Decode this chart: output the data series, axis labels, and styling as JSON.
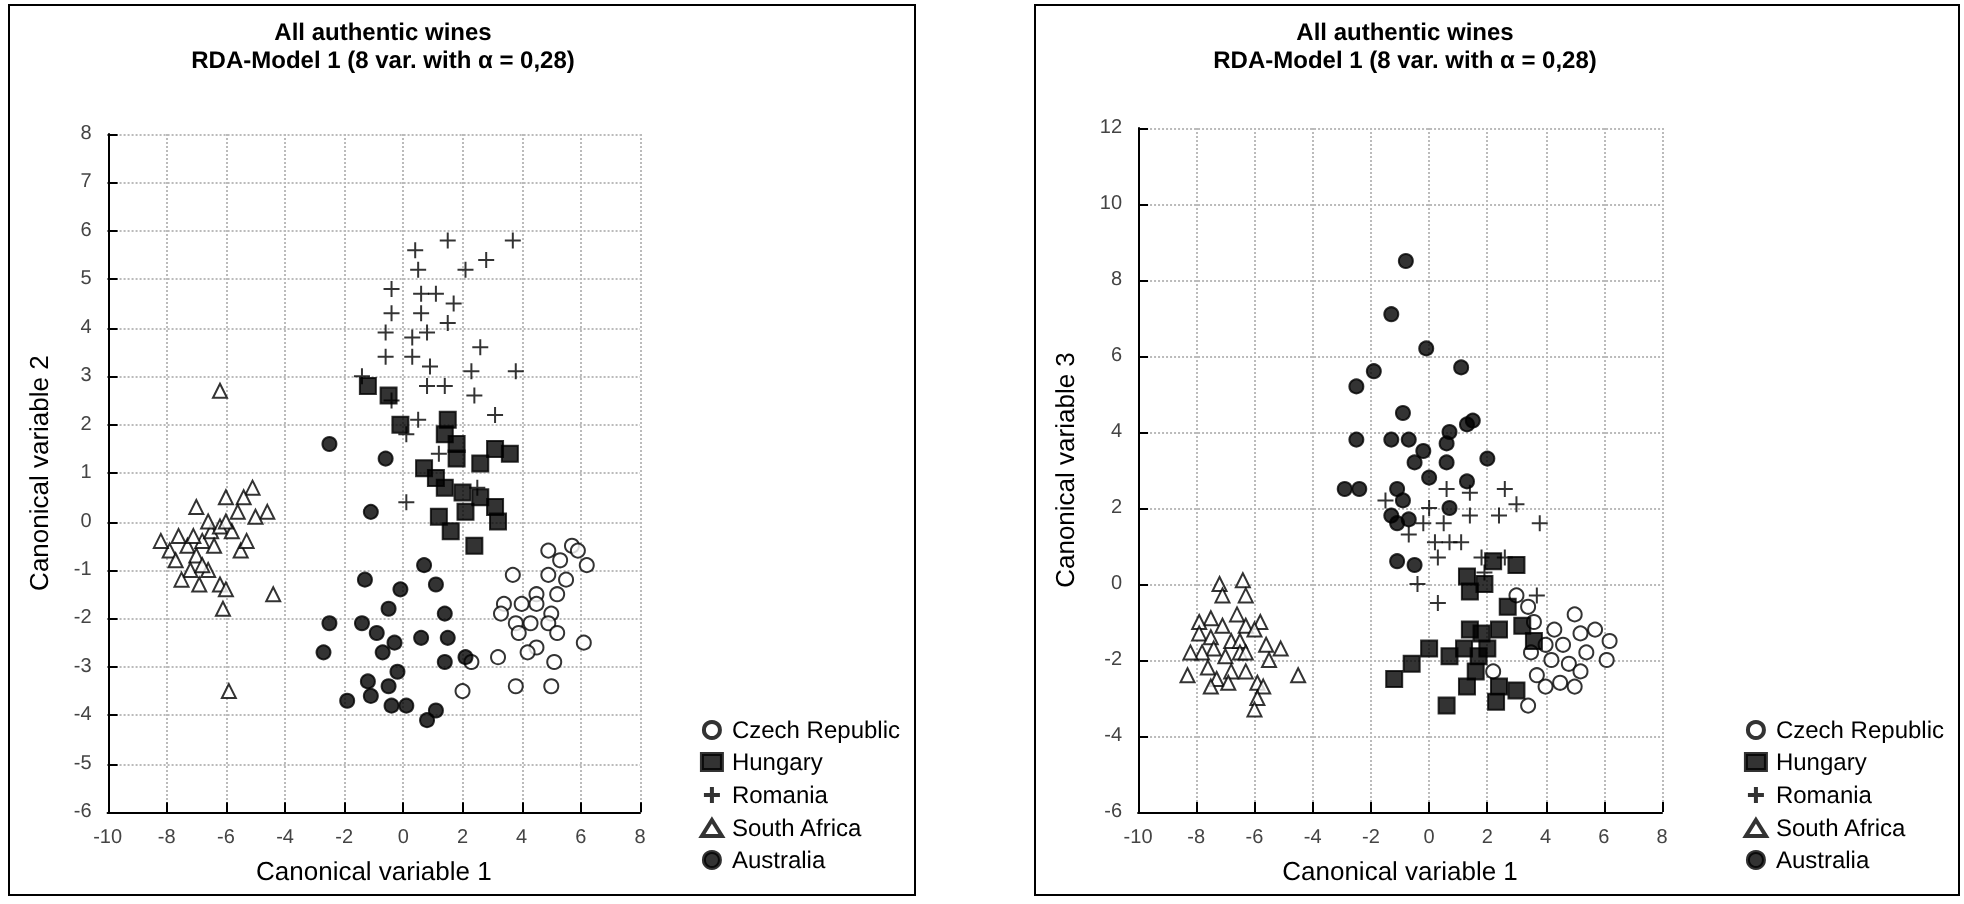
{
  "chart_data": [
    {
      "type": "scatter",
      "title": "All authentic wines",
      "subtitle": "RDA-Model 1 (8 var. with α = 0,28)",
      "xlabel": "Canonical variable 1",
      "ylabel": "Canonical variable 2",
      "xlim": [
        -10,
        8
      ],
      "ylim": [
        -6,
        8
      ],
      "xticks": [
        -10,
        -8,
        -6,
        -4,
        -2,
        0,
        2,
        4,
        6,
        8
      ],
      "yticks": [
        -6,
        -5,
        -4,
        -3,
        -2,
        -1,
        0,
        1,
        2,
        3,
        4,
        5,
        6,
        7,
        8
      ],
      "grid": true,
      "legend": "bottom right",
      "series": [
        {
          "name": "Czech Republic",
          "color": "#ffffff",
          "marker": "circle",
          "x": [
            5.7,
            5.9,
            6.2,
            4.9,
            5.3,
            3.7,
            4.9,
            5.5,
            4.5,
            5.2,
            3.4,
            4.0,
            4.5,
            5.0,
            3.3,
            3.8,
            4.3,
            4.9,
            3.9,
            4.5,
            5.2,
            6.1,
            3.2,
            5.1,
            2.3,
            2.0,
            3.8,
            5.0,
            4.2
          ],
          "values": [
            -0.5,
            -0.6,
            -0.9,
            -0.6,
            -0.8,
            -1.1,
            -1.1,
            -1.2,
            -1.5,
            -1.5,
            -1.7,
            -1.7,
            -1.7,
            -1.9,
            -1.9,
            -2.1,
            -2.1,
            -2.1,
            -2.3,
            -2.6,
            -2.3,
            -2.5,
            -2.8,
            -2.9,
            -2.9,
            -3.5,
            -3.4,
            -3.4,
            -2.7
          ]
        },
        {
          "name": "Hungary",
          "color": "#000000",
          "marker": "square",
          "x": [
            -1.2,
            -0.5,
            -0.1,
            1.5,
            1.4,
            0.7,
            1.8,
            3.1,
            3.6,
            2.6,
            1.1,
            1.4,
            2.0,
            2.6,
            3.1,
            1.2,
            1.6,
            2.1,
            2.4,
            3.2,
            1.8
          ],
          "values": [
            2.8,
            2.6,
            2.0,
            2.1,
            1.8,
            1.1,
            1.3,
            1.5,
            1.4,
            1.2,
            0.9,
            0.7,
            0.6,
            0.5,
            0.3,
            0.1,
            -0.2,
            0.2,
            -0.5,
            0.0,
            1.6
          ]
        },
        {
          "name": "Romania",
          "color": "#000000",
          "marker": "cross",
          "x": [
            1.5,
            3.7,
            0.4,
            2.8,
            2.1,
            0.5,
            -0.4,
            0.6,
            1.1,
            1.7,
            -0.4,
            0.6,
            1.5,
            -0.6,
            0.3,
            0.8,
            2.6,
            -0.6,
            0.3,
            0.9,
            -1.4,
            2.3,
            3.8,
            0.8,
            1.4,
            2.4,
            -0.4,
            3.1,
            0.5,
            0.1,
            1.2,
            0.1,
            2.5
          ],
          "values": [
            5.8,
            5.8,
            5.6,
            5.4,
            5.2,
            5.2,
            4.8,
            4.7,
            4.7,
            4.5,
            4.3,
            4.3,
            4.1,
            3.9,
            3.8,
            3.9,
            3.6,
            3.4,
            3.4,
            3.2,
            3.0,
            3.1,
            3.1,
            2.8,
            2.8,
            2.6,
            2.5,
            2.2,
            2.1,
            1.8,
            1.4,
            0.4,
            0.7
          ]
        },
        {
          "name": "South Africa",
          "color": "#ffffff",
          "marker": "triangle",
          "x": [
            -6.2,
            -5.9,
            -4.4,
            -5.1,
            -4.6,
            -5.4,
            -5.0,
            -5.6,
            -6.0,
            -7.0,
            -7.6,
            -7.9,
            -8.2,
            -7.3,
            -7.0,
            -6.8,
            -6.5,
            -6.2,
            -6.6,
            -7.2,
            -7.5,
            -6.9,
            -6.6,
            -6.2,
            -6.0,
            -6.1,
            -7.7,
            -6.4,
            -5.5,
            -5.3,
            -7.1,
            -6.8,
            -5.8,
            -6.0
          ],
          "values": [
            2.7,
            -3.5,
            -1.5,
            0.7,
            0.2,
            0.5,
            0.1,
            0.2,
            0.5,
            0.3,
            -0.3,
            -0.6,
            -0.4,
            -0.5,
            -0.7,
            -0.4,
            -0.2,
            -0.1,
            0.0,
            -1.0,
            -1.2,
            -1.3,
            -1.0,
            -1.3,
            -1.4,
            -1.8,
            -0.8,
            -0.5,
            -0.6,
            -0.4,
            -0.3,
            -0.9,
            -0.2,
            0.0
          ]
        },
        {
          "name": "Australia",
          "color": "#000000",
          "marker": "circle",
          "x": [
            -2.5,
            -0.6,
            -1.1,
            0.7,
            -1.3,
            -0.1,
            1.1,
            -0.5,
            1.4,
            -1.4,
            -0.9,
            0.6,
            1.5,
            -2.5,
            -2.7,
            2.1,
            1.4,
            -0.7,
            -0.2,
            -1.2,
            -0.5,
            -1.9,
            -1.1,
            -0.4,
            0.1,
            1.1,
            0.8,
            -0.3
          ],
          "values": [
            1.6,
            1.3,
            0.2,
            -0.9,
            -1.2,
            -1.4,
            -1.3,
            -1.8,
            -1.9,
            -2.1,
            -2.3,
            -2.4,
            -2.4,
            -2.1,
            -2.7,
            -2.8,
            -2.9,
            -2.7,
            -3.1,
            -3.3,
            -3.4,
            -3.7,
            -3.6,
            -3.8,
            -3.8,
            -3.9,
            -4.1,
            -2.5
          ]
        }
      ]
    },
    {
      "type": "scatter",
      "title": "All authentic wines",
      "subtitle": "RDA-Model 1 (8 var. with α = 0,28)",
      "xlabel": "Canonical variable 1",
      "ylabel": "Canonical variable 3",
      "xlim": [
        -10,
        8
      ],
      "ylim": [
        -6,
        12
      ],
      "xticks": [
        -10,
        -8,
        -6,
        -4,
        -2,
        0,
        2,
        4,
        6,
        8
      ],
      "yticks": [
        -6,
        -4,
        -2,
        0,
        2,
        4,
        6,
        8,
        10,
        12
      ],
      "grid": true,
      "legend": "bottom right",
      "series": [
        {
          "name": "Czech Republic",
          "color": "#ffffff",
          "marker": "circle",
          "x": [
            5.0,
            5.7,
            6.2,
            3.6,
            4.3,
            5.2,
            4.0,
            4.6,
            5.4,
            6.1,
            3.5,
            4.2,
            4.8,
            5.2,
            3.7,
            4.5,
            5.0,
            4.0,
            3.4,
            2.2,
            3.4,
            3.0
          ],
          "values": [
            -0.8,
            -1.2,
            -1.5,
            -1.0,
            -1.2,
            -1.3,
            -1.6,
            -1.6,
            -1.8,
            -2.0,
            -1.8,
            -2.0,
            -2.1,
            -2.3,
            -2.4,
            -2.6,
            -2.7,
            -2.7,
            -3.2,
            -2.3,
            -0.6,
            -0.3
          ]
        },
        {
          "name": "Hungary",
          "color": "#000000",
          "marker": "square",
          "x": [
            -1.2,
            -0.6,
            0.0,
            0.7,
            0.6,
            1.3,
            2.3,
            3.0,
            1.4,
            1.8,
            2.4,
            1.2,
            1.7,
            1.6,
            2.0,
            2.7,
            3.2,
            3.6,
            1.3,
            1.4,
            1.9,
            2.2,
            3.0,
            2.4
          ],
          "values": [
            -2.5,
            -2.1,
            -1.7,
            -1.9,
            -3.2,
            -2.7,
            -3.1,
            -2.8,
            -1.2,
            -1.3,
            -1.2,
            -1.7,
            -1.9,
            -2.3,
            -1.7,
            -0.6,
            -1.1,
            -1.5,
            0.2,
            -0.2,
            0.0,
            0.6,
            0.5,
            -2.7
          ]
        },
        {
          "name": "Romania",
          "color": "#000000",
          "marker": "cross",
          "x": [
            0.6,
            1.4,
            2.6,
            3.0,
            3.8,
            2.4,
            0.0,
            -0.2,
            -0.7,
            0.2,
            0.7,
            1.1,
            0.5,
            1.8,
            2.6,
            0.3,
            -0.4,
            0.3,
            3.7,
            1.9,
            1.4,
            -1.5
          ],
          "values": [
            2.5,
            2.4,
            2.5,
            2.1,
            1.6,
            1.8,
            2.0,
            1.6,
            1.3,
            1.1,
            1.1,
            1.1,
            1.6,
            0.7,
            0.7,
            0.7,
            0.0,
            -0.5,
            -0.3,
            0.3,
            1.8,
            2.2
          ]
        },
        {
          "name": "South Africa",
          "color": "#ffffff",
          "marker": "triangle",
          "x": [
            -7.2,
            -6.4,
            -6.3,
            -7.1,
            -6.6,
            -7.5,
            -7.9,
            -5.8,
            -7.1,
            -6.3,
            -6.0,
            -7.9,
            -7.5,
            -6.8,
            -6.5,
            -7.4,
            -7.8,
            -6.5,
            -5.6,
            -5.1,
            -8.2,
            -7.0,
            -6.3,
            -5.5,
            -7.6,
            -6.8,
            -6.3,
            -8.3,
            -4.5,
            -7.3,
            -7.5,
            -6.9,
            -5.9,
            -5.7,
            -5.9,
            -6.0
          ],
          "values": [
            0.0,
            0.1,
            -0.3,
            -0.3,
            -0.8,
            -0.9,
            -1.0,
            -1.0,
            -1.1,
            -1.1,
            -1.2,
            -1.3,
            -1.4,
            -1.5,
            -1.5,
            -1.7,
            -1.8,
            -1.8,
            -1.6,
            -1.7,
            -1.8,
            -1.9,
            -1.8,
            -2.0,
            -2.2,
            -2.3,
            -2.3,
            -2.4,
            -2.4,
            -2.5,
            -2.7,
            -2.6,
            -2.6,
            -2.7,
            -3.0,
            -3.3
          ]
        },
        {
          "name": "Australia",
          "color": "#000000",
          "marker": "circle",
          "x": [
            -0.8,
            -1.3,
            -1.9,
            -2.5,
            -2.5,
            -1.3,
            -2.9,
            -2.4,
            -1.1,
            -1.3,
            -1.1,
            -1.1,
            -0.1,
            1.1,
            -0.9,
            -0.7,
            -0.2,
            -0.5,
            0.7,
            1.3,
            1.5,
            0.6,
            0.6,
            2.0,
            0.0,
            -0.9,
            0.7,
            1.3,
            -0.7,
            -0.5
          ],
          "values": [
            8.5,
            7.1,
            5.6,
            5.2,
            3.8,
            3.8,
            2.5,
            2.5,
            2.5,
            1.8,
            1.6,
            0.6,
            6.2,
            5.7,
            4.5,
            3.8,
            3.5,
            3.2,
            4.0,
            4.2,
            4.3,
            3.7,
            3.2,
            3.3,
            2.8,
            2.2,
            2.0,
            2.7,
            1.7,
            0.5
          ]
        }
      ]
    }
  ]
}
